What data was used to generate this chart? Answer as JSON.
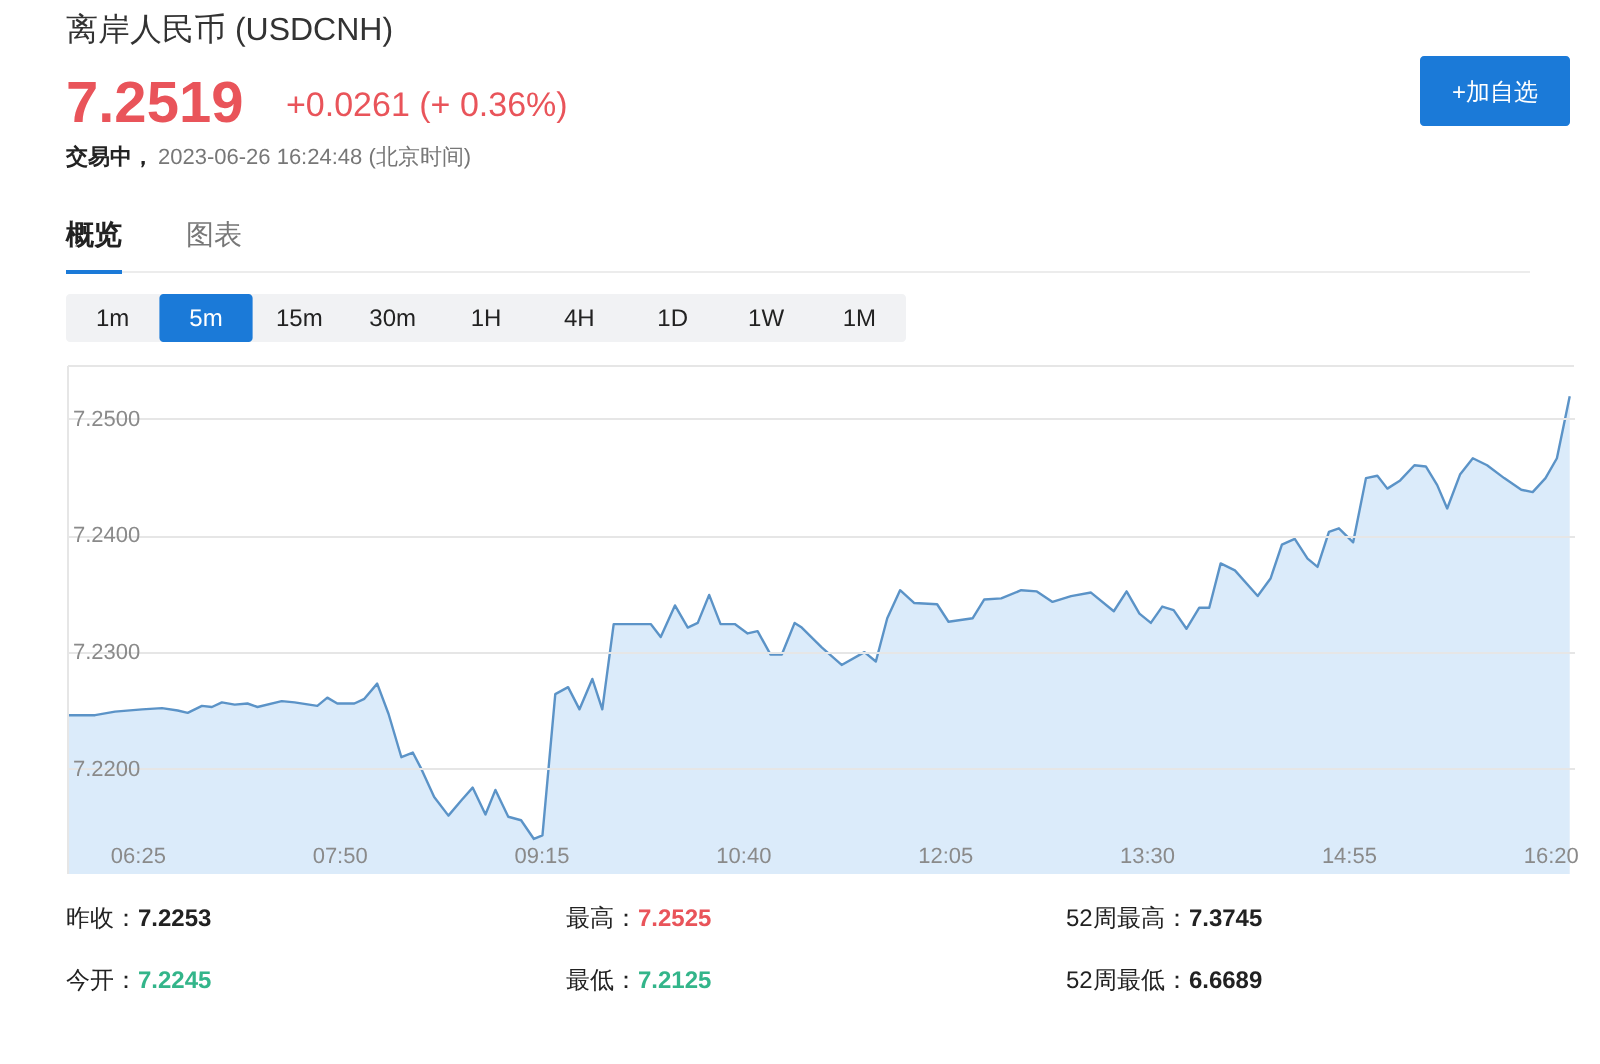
{
  "chart_data": {
    "type": "line",
    "title": "离岸人民币 (USDCNH)",
    "annotations": [
      "7.2519",
      "+0.0261 (+ 0.36%)",
      "交易中，",
      "2023-06-26 16:24:48 (北京时间)",
      "+加自选",
      "概览",
      "图表",
      "1m",
      "5m",
      "15m",
      "30m",
      "1H",
      "4H",
      "1D",
      "1W",
      "1M",
      "昨收：",
      "7.2253",
      "最高：",
      "7.2525",
      "52周最高：",
      "7.3745",
      "今开：",
      "7.2245",
      "最低：",
      "7.2125",
      "52周最低：",
      "6.6689"
    ],
    "x": [
      5.93,
      6.12,
      6.26,
      6.45,
      6.59,
      6.7,
      6.77,
      6.87,
      6.94,
      7.01,
      7.1,
      7.19,
      7.26,
      7.43,
      7.52,
      7.68,
      7.75,
      7.82,
      7.94,
      8.01,
      8.1,
      8.18,
      8.27,
      8.35,
      8.41,
      8.5,
      8.6,
      8.69,
      8.77,
      8.86,
      8.93,
      9.02,
      9.11,
      9.2,
      9.26,
      9.35,
      9.44,
      9.52,
      9.61,
      9.68,
      9.76,
      9.86,
      10.02,
      10.09,
      10.19,
      10.28,
      10.35,
      10.43,
      10.51,
      10.61,
      10.7,
      10.77,
      10.86,
      10.94,
      11.03,
      11.08,
      11.22,
      11.36,
      11.52,
      11.6,
      11.68,
      11.77,
      11.87,
      12.03,
      12.11,
      12.28,
      12.36,
      12.48,
      12.62,
      12.73,
      12.84,
      12.97,
      13.11,
      13.27,
      13.36,
      13.45,
      13.53,
      13.61,
      13.69,
      13.78,
      13.87,
      13.94,
      14.02,
      14.12,
      14.28,
      14.37,
      14.45,
      14.54,
      14.63,
      14.7,
      14.78,
      14.85,
      14.95,
      15.04,
      15.12,
      15.19,
      15.28,
      15.38,
      15.46,
      15.54,
      15.61,
      15.7,
      15.79,
      15.89,
      16.01,
      16.13,
      16.21,
      16.3,
      16.38,
      16.47
    ],
    "series": [
      {
        "color": "#5b93c7",
        "values": [
          7.2246,
          7.2246,
          7.2249,
          7.2251,
          7.2252,
          7.225,
          7.2248,
          7.2254,
          7.2253,
          7.2257,
          7.2255,
          7.2256,
          7.2253,
          7.2258,
          7.2257,
          7.2254,
          7.2261,
          7.2256,
          7.2256,
          7.226,
          7.2273,
          7.2247,
          7.221,
          7.2214,
          7.22,
          7.2176,
          7.216,
          7.2173,
          7.2184,
          7.2161,
          7.2182,
          7.2159,
          7.2156,
          7.214,
          7.2143,
          7.2264,
          7.227,
          7.2251,
          7.2277,
          7.2251,
          7.2324,
          7.2324,
          7.2324,
          7.2313,
          7.234,
          7.2321,
          7.2325,
          7.2349,
          7.2324,
          7.2324,
          7.2316,
          7.2318,
          7.2298,
          7.2298,
          7.2325,
          7.2321,
          7.2304,
          7.2289,
          7.23,
          7.2292,
          7.2329,
          7.2353,
          7.2342,
          7.2341,
          7.2326,
          7.2329,
          7.2345,
          7.2346,
          7.2353,
          7.2352,
          7.2343,
          7.2348,
          7.2351,
          7.2335,
          7.2352,
          7.2333,
          7.2325,
          7.2339,
          7.2336,
          7.232,
          7.2338,
          7.2338,
          7.2376,
          7.237,
          7.2348,
          7.2363,
          7.2392,
          7.2397,
          7.238,
          7.2373,
          7.2403,
          7.2406,
          7.2394,
          7.2449,
          7.2451,
          7.244,
          7.2447,
          7.246,
          7.2459,
          7.2443,
          7.2423,
          7.2452,
          7.2466,
          7.246,
          7.2449,
          7.2439,
          7.2437,
          7.2449,
          7.2466,
          7.2519
        ]
      }
    ],
    "xlim": [
      5.93,
      16.5
    ],
    "xticks": [
      {
        "value": 6.4167,
        "label": "06:25"
      },
      {
        "value": 7.8333,
        "label": "07:50"
      },
      {
        "value": 9.25,
        "label": "09:15"
      },
      {
        "value": 10.6667,
        "label": "10:40"
      },
      {
        "value": 12.0833,
        "label": "12:05"
      },
      {
        "value": 13.5,
        "label": "13:30"
      },
      {
        "value": 14.9167,
        "label": "14:55"
      },
      {
        "value": 16.3333,
        "label": "16:20"
      }
    ],
    "ylim": [
      7.211,
      7.2545
    ],
    "yticks": [
      {
        "value": 7.22,
        "label": "7.2200"
      },
      {
        "value": 7.23,
        "label": "7.2300"
      },
      {
        "value": 7.24,
        "label": "7.2400"
      },
      {
        "value": 7.25,
        "label": "7.2500"
      }
    ],
    "grid": "y"
  }
}
